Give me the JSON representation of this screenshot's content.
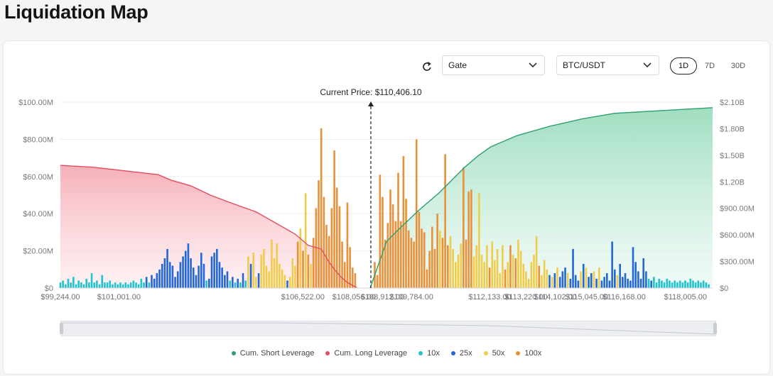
{
  "page": {
    "title": "Liquidation Map"
  },
  "controls": {
    "exchange": "Gate",
    "pair": "BTC/USDT",
    "timeframes": [
      "1D",
      "7D",
      "30D"
    ],
    "active_timeframe": "1D"
  },
  "colors": {
    "short": "#2e9f6e",
    "long": "#e24c5e",
    "x10": "#1ec4cf",
    "x25": "#2367d6",
    "x50": "#f0cc4a",
    "x100": "#e8913a"
  },
  "chart_data": {
    "type": "bar",
    "current_price_label": "Current Price: $110,406.10",
    "x_range": [
      99244,
      118820
    ],
    "x_ticks": [
      {
        "label": "$99,244.00",
        "v": 99244
      },
      {
        "label": "$101,001.00",
        "v": 101001
      },
      {
        "label": "$106,522.00",
        "v": 106522
      },
      {
        "label": "$108,056.00",
        "v": 108056
      },
      {
        "label": "$108,912.00",
        "v": 108912
      },
      {
        "label": "$109,784.00",
        "v": 109784
      },
      {
        "label": "$112,133.00",
        "v": 112133
      },
      {
        "label": "$113,220.00",
        "v": 113220
      },
      {
        "label": "$114,102.00",
        "v": 114102
      },
      {
        "label": "$115,045.00",
        "v": 115045
      },
      {
        "label": "$116,168.00",
        "v": 116168
      },
      {
        "label": "$118,005.00",
        "v": 118005
      }
    ],
    "y_left": {
      "ticks": [
        "$0",
        "$20.00M",
        "$40.00M",
        "$60.00M",
        "$80.00M",
        "$100.00M"
      ],
      "range": [
        0,
        100
      ]
    },
    "y_right": {
      "ticks": [
        "$0",
        "$300.00M",
        "$600.00M",
        "$900.00M",
        "$1.20B",
        "$1.50B",
        "$1.80B",
        "$2.10B"
      ],
      "range": [
        0,
        2100
      ]
    },
    "grid": true,
    "legend_position": "bottom",
    "legend": [
      "Cum. Short Leverage",
      "Cum. Long Leverage",
      "10x",
      "25x",
      "50x",
      "100x"
    ],
    "bars": [
      [
        0,
        3,
        "x10"
      ],
      [
        0.004,
        4,
        "x10"
      ],
      [
        0.008,
        2,
        "x10"
      ],
      [
        0.012,
        5,
        "x10"
      ],
      [
        0.016,
        3,
        "x10"
      ],
      [
        0.02,
        6,
        "x10"
      ],
      [
        0.024,
        2,
        "x10"
      ],
      [
        0.028,
        4,
        "x10"
      ],
      [
        0.032,
        3,
        "x10"
      ],
      [
        0.036,
        2,
        "x10"
      ],
      [
        0.04,
        5,
        "x10"
      ],
      [
        0.044,
        3,
        "x10"
      ],
      [
        0.048,
        8,
        "x10"
      ],
      [
        0.052,
        3,
        "x10"
      ],
      [
        0.056,
        4,
        "x10"
      ],
      [
        0.06,
        2,
        "x10"
      ],
      [
        0.064,
        7,
        "x10"
      ],
      [
        0.068,
        3,
        "x10"
      ],
      [
        0.072,
        3,
        "x10"
      ],
      [
        0.076,
        4,
        "x10"
      ],
      [
        0.08,
        2,
        "x10"
      ],
      [
        0.084,
        3,
        "x10"
      ],
      [
        0.088,
        2,
        "x10"
      ],
      [
        0.092,
        3,
        "x10"
      ],
      [
        0.096,
        2,
        "x10"
      ],
      [
        0.1,
        3,
        "x10"
      ],
      [
        0.104,
        2,
        "x10"
      ],
      [
        0.108,
        3,
        "x10"
      ],
      [
        0.112,
        4,
        "x10"
      ],
      [
        0.116,
        3,
        "x10"
      ],
      [
        0.12,
        2,
        "x10"
      ],
      [
        0.124,
        5,
        "x10"
      ],
      [
        0.128,
        3,
        "x10"
      ],
      [
        0.132,
        6,
        "x25"
      ],
      [
        0.136,
        3,
        "x10"
      ],
      [
        0.14,
        7,
        "x25"
      ],
      [
        0.144,
        5,
        "x25"
      ],
      [
        0.148,
        8,
        "x25"
      ],
      [
        0.152,
        10,
        "x25"
      ],
      [
        0.156,
        13,
        "x25"
      ],
      [
        0.16,
        16,
        "x25"
      ],
      [
        0.164,
        21,
        "x25"
      ],
      [
        0.168,
        14,
        "x25"
      ],
      [
        0.172,
        12,
        "x25"
      ],
      [
        0.176,
        6,
        "x25"
      ],
      [
        0.18,
        9,
        "x25"
      ],
      [
        0.184,
        14,
        "x25"
      ],
      [
        0.188,
        17,
        "x25"
      ],
      [
        0.192,
        20,
        "x25"
      ],
      [
        0.196,
        24,
        "x25"
      ],
      [
        0.2,
        16,
        "x25"
      ],
      [
        0.204,
        11,
        "x25"
      ],
      [
        0.208,
        7,
        "x25"
      ],
      [
        0.212,
        12,
        "x25"
      ],
      [
        0.216,
        19,
        "x25"
      ],
      [
        0.22,
        13,
        "x25"
      ],
      [
        0.224,
        4,
        "x10"
      ],
      [
        0.228,
        5,
        "x25"
      ],
      [
        0.232,
        17,
        "x25"
      ],
      [
        0.236,
        19,
        "x25"
      ],
      [
        0.24,
        21,
        "x25"
      ],
      [
        0.244,
        14,
        "x25"
      ],
      [
        0.248,
        11,
        "x25"
      ],
      [
        0.252,
        7,
        "x25"
      ],
      [
        0.256,
        9,
        "x25"
      ],
      [
        0.26,
        4,
        "x10"
      ],
      [
        0.264,
        6,
        "x25"
      ],
      [
        0.268,
        3,
        "x10"
      ],
      [
        0.272,
        5,
        "x25"
      ],
      [
        0.276,
        3,
        "x10"
      ],
      [
        0.28,
        8,
        "x25"
      ],
      [
        0.284,
        4,
        "x10"
      ],
      [
        0.288,
        17,
        "x50"
      ],
      [
        0.292,
        13,
        "x25"
      ],
      [
        0.296,
        19,
        "x50"
      ],
      [
        0.3,
        6,
        "x50"
      ],
      [
        0.304,
        8,
        "x25"
      ],
      [
        0.308,
        18,
        "x50"
      ],
      [
        0.312,
        21,
        "x50"
      ],
      [
        0.316,
        12,
        "x50"
      ],
      [
        0.32,
        9,
        "x50"
      ],
      [
        0.324,
        26,
        "x50"
      ],
      [
        0.328,
        16,
        "x50"
      ],
      [
        0.332,
        24,
        "x50"
      ],
      [
        0.336,
        13,
        "x50"
      ],
      [
        0.34,
        10,
        "x50"
      ],
      [
        0.344,
        7,
        "x50"
      ],
      [
        0.348,
        4,
        "x25"
      ],
      [
        0.352,
        6,
        "x50"
      ],
      [
        0.356,
        16,
        "x50"
      ],
      [
        0.36,
        12,
        "x50"
      ],
      [
        0.364,
        25,
        "x100"
      ],
      [
        0.368,
        32,
        "x50"
      ],
      [
        0.372,
        20,
        "x100"
      ],
      [
        0.376,
        51,
        "x50"
      ],
      [
        0.38,
        18,
        "x100"
      ],
      [
        0.384,
        13,
        "x50"
      ],
      [
        0.388,
        27,
        "x100"
      ],
      [
        0.392,
        43,
        "x100"
      ],
      [
        0.396,
        58,
        "x100"
      ],
      [
        0.4,
        86,
        "x100"
      ],
      [
        0.404,
        49,
        "x100"
      ],
      [
        0.408,
        34,
        "x100"
      ],
      [
        0.412,
        28,
        "x100"
      ],
      [
        0.416,
        43,
        "x100"
      ],
      [
        0.42,
        74,
        "x100"
      ],
      [
        0.424,
        54,
        "x100"
      ],
      [
        0.428,
        44,
        "x100"
      ],
      [
        0.432,
        25,
        "x100"
      ],
      [
        0.436,
        14,
        "x100"
      ],
      [
        0.44,
        46,
        "x100"
      ],
      [
        0.444,
        22,
        "x100"
      ],
      [
        0.448,
        11,
        "x100"
      ],
      [
        0.452,
        8,
        "x100"
      ],
      [
        0.482,
        14,
        "x100"
      ],
      [
        0.486,
        7,
        "x100"
      ],
      [
        0.49,
        61,
        "x100"
      ],
      [
        0.494,
        49,
        "x100"
      ],
      [
        0.498,
        26,
        "x100"
      ],
      [
        0.502,
        35,
        "x100"
      ],
      [
        0.506,
        53,
        "x100"
      ],
      [
        0.51,
        45,
        "x100"
      ],
      [
        0.514,
        36,
        "x100"
      ],
      [
        0.518,
        62,
        "x100"
      ],
      [
        0.522,
        36,
        "x100"
      ],
      [
        0.526,
        71,
        "x100"
      ],
      [
        0.53,
        48,
        "x100"
      ],
      [
        0.534,
        31,
        "x100"
      ],
      [
        0.538,
        27,
        "x100"
      ],
      [
        0.542,
        25,
        "x100"
      ],
      [
        0.546,
        80,
        "x100"
      ],
      [
        0.55,
        41,
        "x100"
      ],
      [
        0.554,
        32,
        "x100"
      ],
      [
        0.558,
        30,
        "x100"
      ],
      [
        0.562,
        10,
        "x100"
      ],
      [
        0.566,
        20,
        "x100"
      ],
      [
        0.57,
        33,
        "x100"
      ],
      [
        0.574,
        21,
        "x100"
      ],
      [
        0.578,
        40,
        "x100"
      ],
      [
        0.582,
        31,
        "x50"
      ],
      [
        0.586,
        27,
        "x100"
      ],
      [
        0.59,
        72,
        "x100"
      ],
      [
        0.594,
        23,
        "x100"
      ],
      [
        0.598,
        28,
        "x50"
      ],
      [
        0.602,
        21,
        "x50"
      ],
      [
        0.606,
        14,
        "x50"
      ],
      [
        0.61,
        18,
        "x50"
      ],
      [
        0.614,
        24,
        "x50"
      ],
      [
        0.618,
        65,
        "x100"
      ],
      [
        0.622,
        26,
        "x100"
      ],
      [
        0.626,
        52,
        "x100"
      ],
      [
        0.63,
        53,
        "x100"
      ],
      [
        0.634,
        17,
        "x50"
      ],
      [
        0.638,
        23,
        "x50"
      ],
      [
        0.642,
        51,
        "x50"
      ],
      [
        0.646,
        18,
        "x50"
      ],
      [
        0.65,
        14,
        "x50"
      ],
      [
        0.654,
        23,
        "x50"
      ],
      [
        0.658,
        11,
        "x100"
      ],
      [
        0.662,
        25,
        "x50"
      ],
      [
        0.666,
        15,
        "x50"
      ],
      [
        0.67,
        21,
        "x50"
      ],
      [
        0.674,
        8,
        "x50"
      ],
      [
        0.678,
        23,
        "x50"
      ],
      [
        0.682,
        10,
        "x100"
      ],
      [
        0.686,
        14,
        "x50"
      ],
      [
        0.69,
        23,
        "x100"
      ],
      [
        0.694,
        18,
        "x50"
      ],
      [
        0.698,
        16,
        "x100"
      ],
      [
        0.702,
        26,
        "x50"
      ],
      [
        0.706,
        20,
        "x50"
      ],
      [
        0.71,
        13,
        "x50"
      ],
      [
        0.714,
        9,
        "x50"
      ],
      [
        0.718,
        5,
        "x50"
      ],
      [
        0.722,
        14,
        "x50"
      ],
      [
        0.726,
        18,
        "x50"
      ],
      [
        0.73,
        28,
        "x50"
      ],
      [
        0.734,
        12,
        "x100"
      ],
      [
        0.738,
        7,
        "x50"
      ],
      [
        0.742,
        15,
        "x50"
      ],
      [
        0.746,
        10,
        "x50"
      ],
      [
        0.75,
        7,
        "x25"
      ],
      [
        0.754,
        6,
        "x50"
      ],
      [
        0.758,
        8,
        "x25"
      ],
      [
        0.762,
        11,
        "x50"
      ],
      [
        0.766,
        6,
        "x25"
      ],
      [
        0.77,
        9,
        "x25"
      ],
      [
        0.774,
        11,
        "x25"
      ],
      [
        0.778,
        8,
        "x50"
      ],
      [
        0.782,
        5,
        "x25"
      ],
      [
        0.786,
        21,
        "x25"
      ],
      [
        0.79,
        7,
        "x25"
      ],
      [
        0.794,
        4,
        "x25"
      ],
      [
        0.798,
        9,
        "x50"
      ],
      [
        0.802,
        13,
        "x25"
      ],
      [
        0.806,
        11,
        "x50"
      ],
      [
        0.81,
        6,
        "x25"
      ],
      [
        0.814,
        8,
        "x25"
      ],
      [
        0.818,
        9,
        "x50"
      ],
      [
        0.822,
        5,
        "x25"
      ],
      [
        0.826,
        11,
        "x50"
      ],
      [
        0.83,
        4,
        "x25"
      ],
      [
        0.834,
        6,
        "x25"
      ],
      [
        0.838,
        8,
        "x25"
      ],
      [
        0.842,
        4,
        "x25"
      ],
      [
        0.846,
        25,
        "x25"
      ],
      [
        0.85,
        10,
        "x25"
      ],
      [
        0.854,
        7,
        "x50"
      ],
      [
        0.858,
        13,
        "x25"
      ],
      [
        0.862,
        6,
        "x25"
      ],
      [
        0.866,
        8,
        "x25"
      ],
      [
        0.87,
        5,
        "x25"
      ],
      [
        0.874,
        4,
        "x25"
      ],
      [
        0.878,
        22,
        "x25"
      ],
      [
        0.882,
        14,
        "x25"
      ],
      [
        0.886,
        9,
        "x25"
      ],
      [
        0.89,
        5,
        "x25"
      ],
      [
        0.894,
        16,
        "x25"
      ],
      [
        0.898,
        9,
        "x25"
      ],
      [
        0.902,
        5,
        "x10"
      ],
      [
        0.906,
        4,
        "x25"
      ],
      [
        0.91,
        6,
        "x10"
      ],
      [
        0.914,
        3,
        "x10"
      ],
      [
        0.918,
        5,
        "x10"
      ],
      [
        0.922,
        4,
        "x10"
      ],
      [
        0.926,
        3,
        "x10"
      ],
      [
        0.93,
        5,
        "x10"
      ],
      [
        0.934,
        4,
        "x10"
      ],
      [
        0.938,
        3,
        "x10"
      ],
      [
        0.942,
        4,
        "x10"
      ],
      [
        0.946,
        3,
        "x10"
      ],
      [
        0.95,
        4,
        "x10"
      ],
      [
        0.954,
        3,
        "x10"
      ],
      [
        0.958,
        4,
        "x10"
      ],
      [
        0.962,
        3,
        "x10"
      ],
      [
        0.966,
        5,
        "x10"
      ],
      [
        0.97,
        4,
        "x10"
      ],
      [
        0.974,
        3,
        "x10"
      ],
      [
        0.978,
        4,
        "x10"
      ],
      [
        0.982,
        3,
        "x10"
      ],
      [
        0.986,
        4,
        "x10"
      ],
      [
        0.99,
        3,
        "x10"
      ],
      [
        0.994,
        2,
        "x10"
      ]
    ],
    "cum_long": [
      [
        0,
        66
      ],
      [
        0.05,
        65
      ],
      [
        0.1,
        63
      ],
      [
        0.15,
        61
      ],
      [
        0.17,
        58
      ],
      [
        0.2,
        55
      ],
      [
        0.23,
        50
      ],
      [
        0.26,
        46
      ],
      [
        0.3,
        41
      ],
      [
        0.32,
        37
      ],
      [
        0.36,
        29
      ],
      [
        0.38,
        23
      ],
      [
        0.4,
        21
      ],
      [
        0.41,
        15
      ],
      [
        0.42,
        10
      ],
      [
        0.43,
        6
      ],
      [
        0.44,
        3
      ],
      [
        0.45,
        1
      ],
      [
        0.455,
        0
      ]
    ],
    "cum_short": [
      [
        0.475,
        0
      ],
      [
        0.485,
        10
      ],
      [
        0.5,
        25
      ],
      [
        0.52,
        32
      ],
      [
        0.55,
        42
      ],
      [
        0.58,
        51
      ],
      [
        0.6,
        58
      ],
      [
        0.62,
        65
      ],
      [
        0.64,
        71
      ],
      [
        0.66,
        76
      ],
      [
        0.7,
        82
      ],
      [
        0.75,
        87
      ],
      [
        0.8,
        91
      ],
      [
        0.85,
        94
      ],
      [
        0.9,
        95
      ],
      [
        0.95,
        96
      ],
      [
        1,
        97
      ]
    ]
  }
}
